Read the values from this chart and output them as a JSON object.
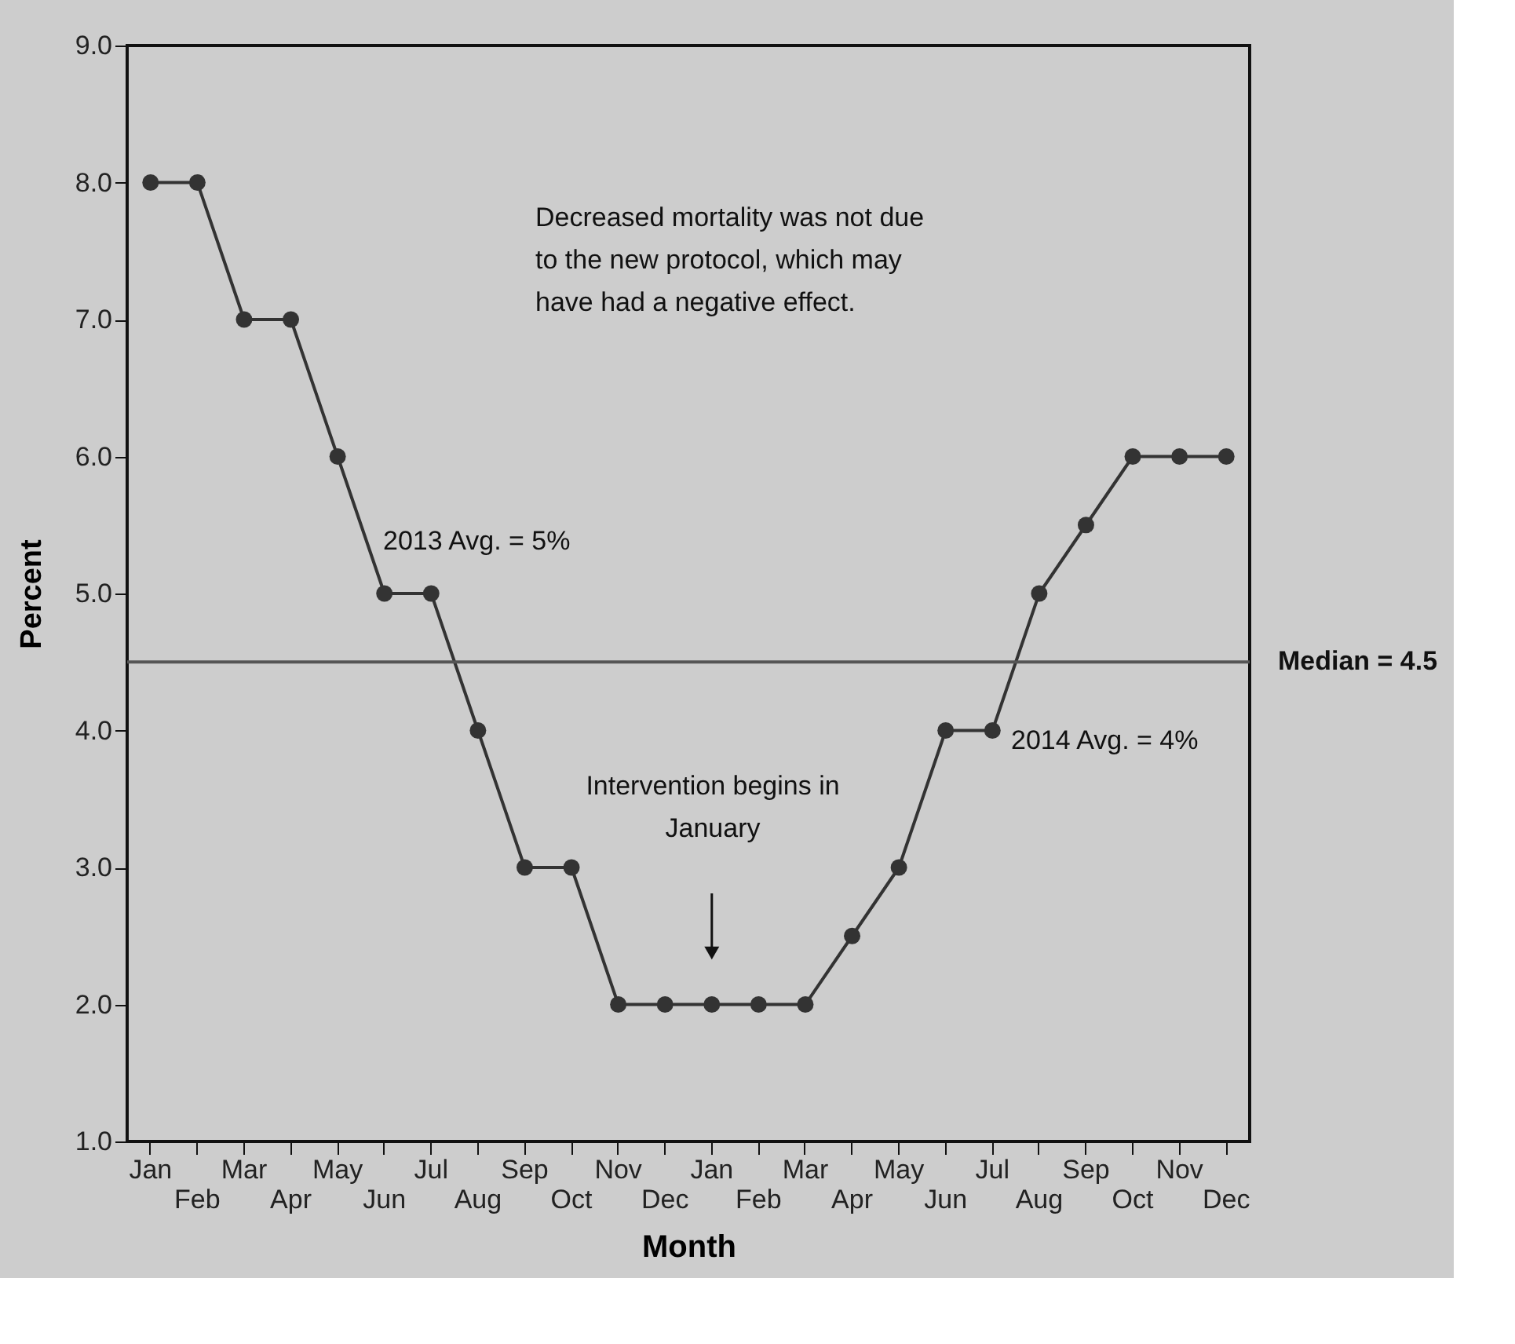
{
  "chart_data": {
    "type": "line",
    "xlabel": "Month",
    "ylabel": "Percent",
    "categories": [
      "Jan",
      "Feb",
      "Mar",
      "Apr",
      "May",
      "Jun",
      "Jul",
      "Aug",
      "Sep",
      "Oct",
      "Nov",
      "Dec",
      "Jan",
      "Feb",
      "Mar",
      "Apr",
      "May",
      "Jun",
      "Jul",
      "Aug",
      "Sep",
      "Oct",
      "Nov",
      "Dec"
    ],
    "series": [
      {
        "color": "#333333",
        "values": [
          8.0,
          8.0,
          7.0,
          7.0,
          6.0,
          5.0,
          5.0,
          4.0,
          3.0,
          3.0,
          2.0,
          2.0,
          2.0,
          2.0,
          2.0,
          2.5,
          3.0,
          4.0,
          4.0,
          5.0,
          5.5,
          6.0,
          6.0,
          6.0
        ]
      }
    ],
    "ylim": [
      1.0,
      9.0
    ],
    "yticks": [
      {
        "value": 1,
        "label": "1.0"
      },
      {
        "value": 2,
        "label": "2.0"
      },
      {
        "value": 3,
        "label": "3.0"
      },
      {
        "value": 4,
        "label": "4.0"
      },
      {
        "value": 5,
        "label": "5.0"
      },
      {
        "value": 6,
        "label": "6.0"
      },
      {
        "value": 7,
        "label": "7.0"
      },
      {
        "value": 8,
        "label": "8.0"
      },
      {
        "value": 9,
        "label": "9.0"
      }
    ],
    "ref_lines": [
      {
        "axis": "y",
        "value": 4.5,
        "label": "Median = 4.5",
        "color": "#555555"
      }
    ],
    "annotations": [
      "Decreased mortality was not due to the new protocol, which may have had a negative effect.",
      "2013 Avg. = 5%",
      "2014 Avg. = 4%",
      "Intervention begins in January"
    ],
    "marker": "circle",
    "line_style": "solid",
    "grid": false
  }
}
